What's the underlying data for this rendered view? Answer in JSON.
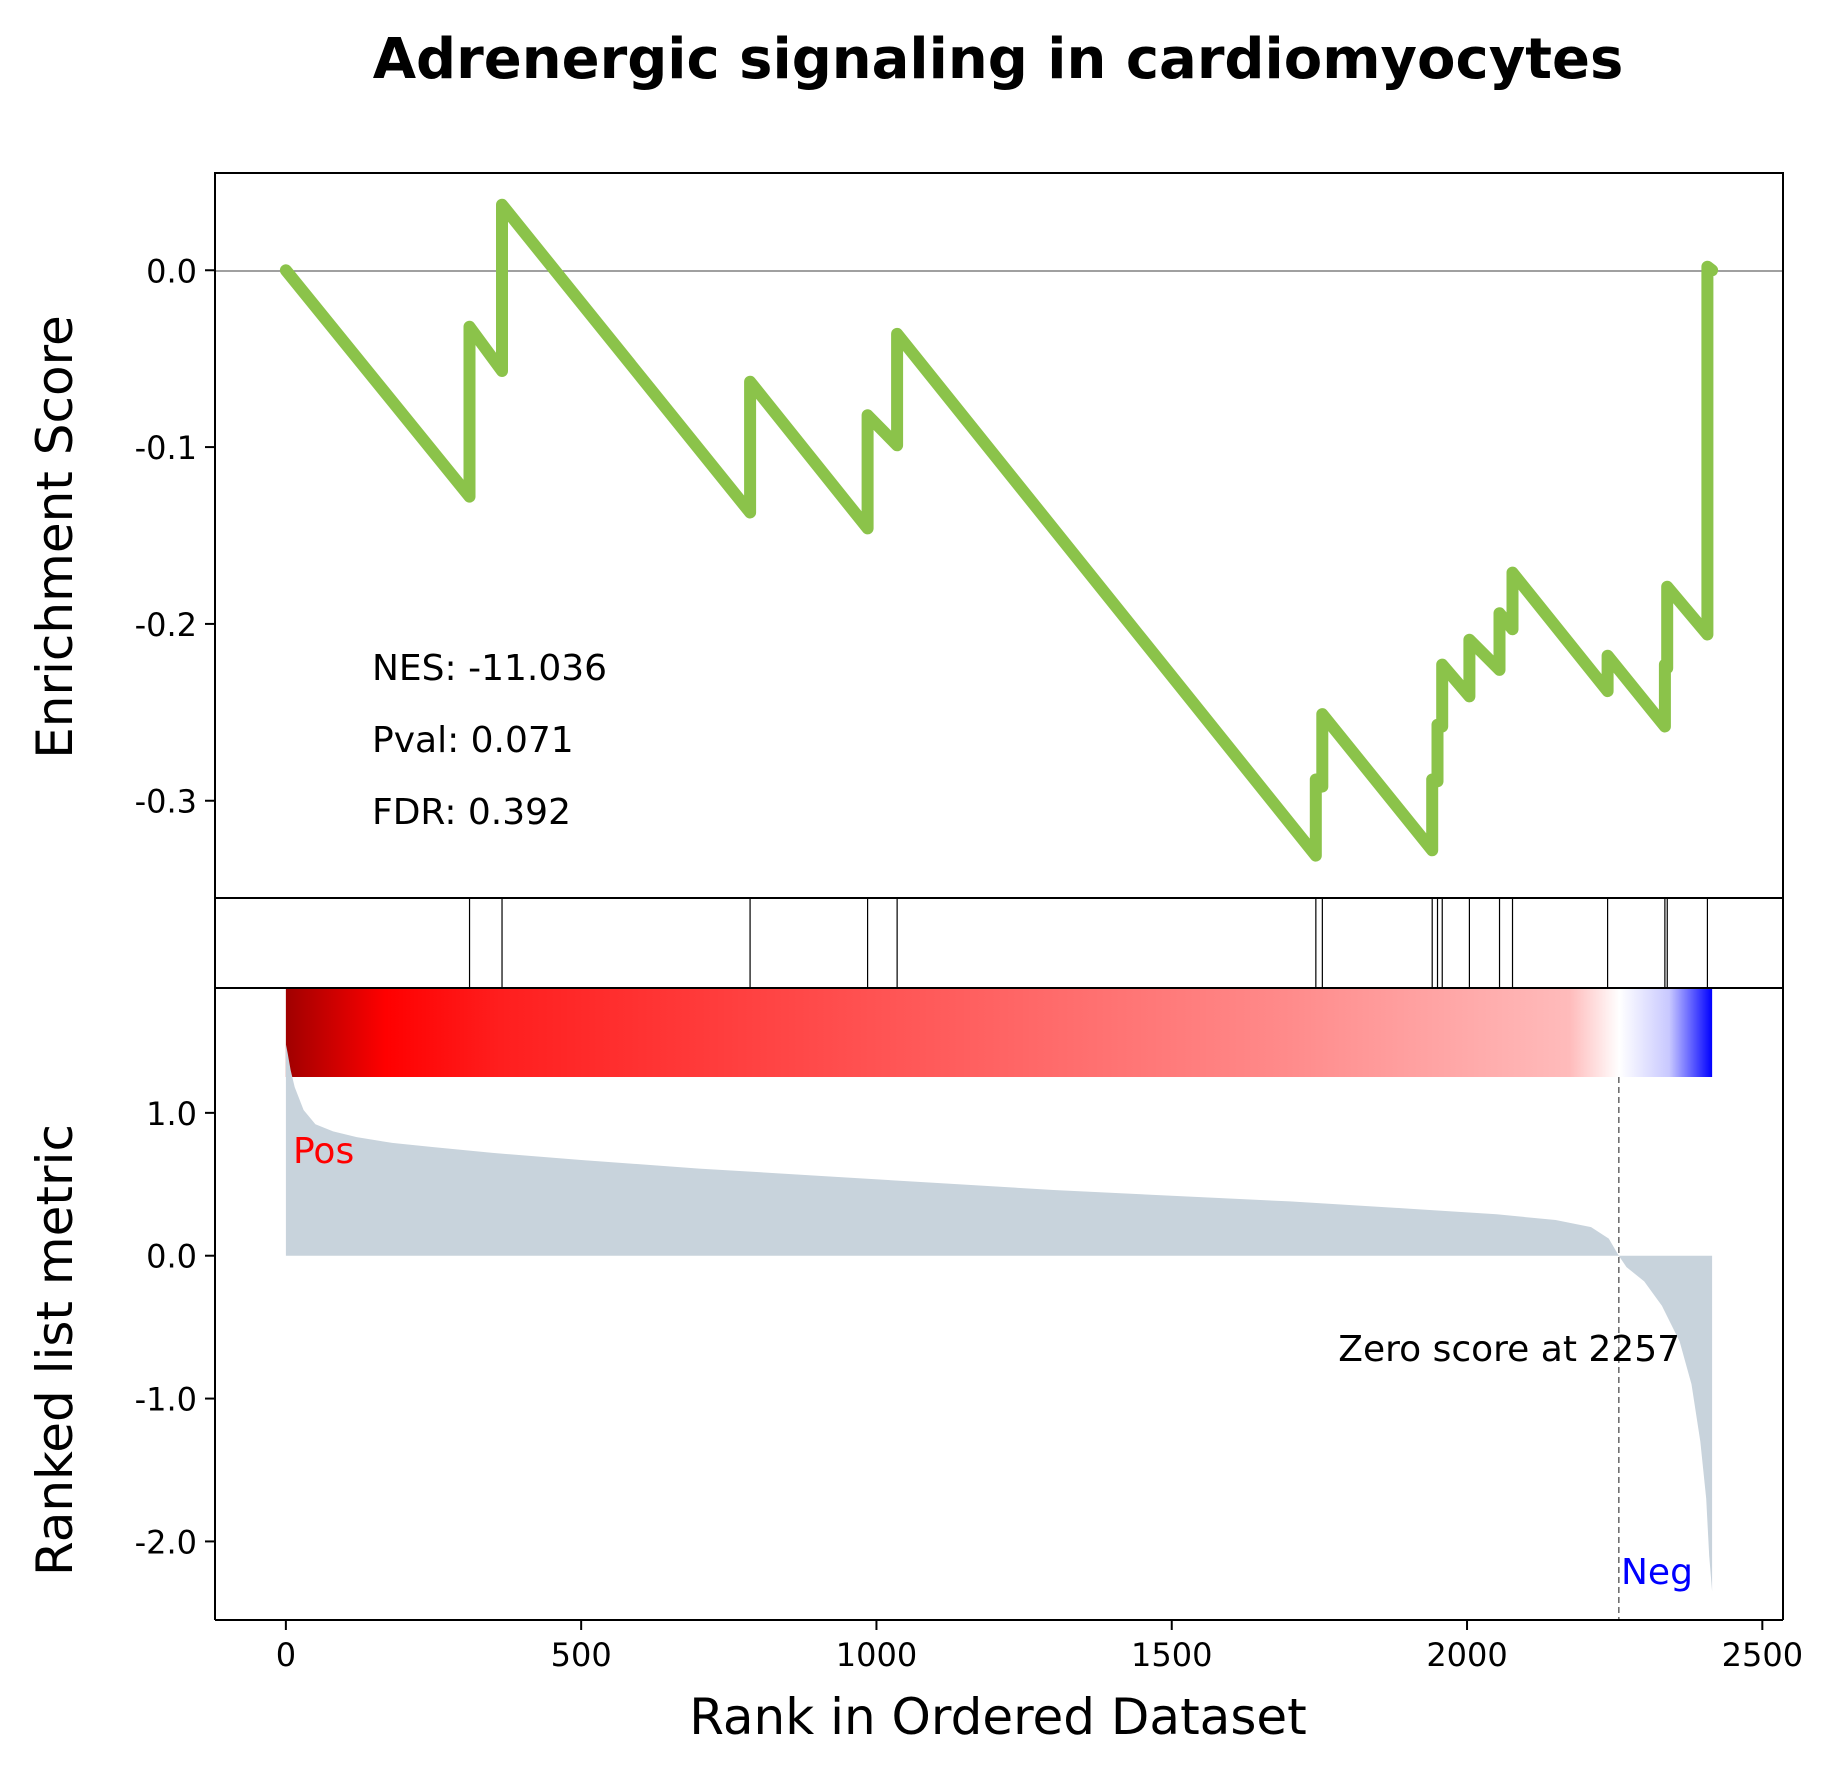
{
  "chart_data": {
    "type": "line",
    "title": "Adrenergic signaling in cardiomyocytes",
    "xlabel": "Rank in Ordered Dataset",
    "xlim": [
      -120,
      2535
    ],
    "x_ticks": [
      0,
      500,
      1000,
      1500,
      2000,
      2500
    ],
    "x_tick_labels": [
      "0",
      "500",
      "1000",
      "1500",
      "2000",
      "2500"
    ],
    "enrichment": {
      "ylabel": "Enrichment Score",
      "ylim": [
        -0.355,
        0.055
      ],
      "y_ticks": [
        0.0,
        -0.1,
        -0.2,
        -0.3
      ],
      "y_tick_labels": [
        "0.0",
        "-0.1",
        "-0.2",
        "-0.3"
      ],
      "color": "#8bc34a",
      "x": [
        0,
        311,
        311,
        366,
        366,
        786,
        786,
        985,
        985,
        1035,
        1035,
        1744,
        1744,
        1755,
        1755,
        1941,
        1941,
        1950,
        1950,
        1958,
        1958,
        2004,
        2004,
        2055,
        2055,
        2077,
        2077,
        2238,
        2238,
        2335,
        2335,
        2339,
        2339,
        2407,
        2407,
        2415
      ],
      "y": [
        0.0,
        -0.128,
        -0.032,
        -0.057,
        0.037,
        -0.137,
        -0.063,
        -0.146,
        -0.082,
        -0.099,
        -0.036,
        -0.331,
        -0.288,
        -0.292,
        -0.251,
        -0.328,
        -0.288,
        -0.289,
        -0.257,
        -0.258,
        -0.223,
        -0.241,
        -0.209,
        -0.226,
        -0.194,
        -0.203,
        -0.171,
        -0.238,
        -0.218,
        -0.258,
        -0.223,
        -0.225,
        -0.179,
        -0.206,
        0.002,
        0.0
      ],
      "hits": [
        311,
        366,
        786,
        985,
        1035,
        1744,
        1755,
        1941,
        1950,
        1958,
        2004,
        2055,
        2077,
        2238,
        2335,
        2339,
        2407
      ],
      "annotations": [
        "NES: -11.036",
        "Pval: 0.071",
        "FDR: 0.392"
      ]
    },
    "ranked": {
      "ylabel": "Ranked list metric",
      "ylim": [
        -2.55,
        1.65
      ],
      "y_ticks": [
        1.0,
        0.0,
        -1.0,
        -2.0
      ],
      "y_tick_labels": [
        "1.0",
        "0.0",
        "-1.0",
        "-2.0"
      ],
      "fill_color": "#c8d3dc",
      "x": [
        0,
        3,
        8,
        15,
        30,
        50,
        80,
        120,
        180,
        250,
        350,
        500,
        700,
        900,
        1100,
        1300,
        1500,
        1700,
        1900,
        2050,
        2150,
        2210,
        2240,
        2257,
        2270,
        2300,
        2330,
        2360,
        2380,
        2395,
        2405,
        2410,
        2415
      ],
      "y": [
        1.48,
        1.42,
        1.3,
        1.18,
        1.02,
        0.92,
        0.87,
        0.83,
        0.79,
        0.76,
        0.72,
        0.67,
        0.61,
        0.56,
        0.51,
        0.46,
        0.42,
        0.38,
        0.33,
        0.29,
        0.25,
        0.2,
        0.12,
        0.0,
        -0.08,
        -0.18,
        -0.35,
        -0.6,
        -0.9,
        -1.3,
        -1.7,
        -2.1,
        -2.35
      ],
      "zero_rank": 2257,
      "zero_label": "Zero score at 2257",
      "pos_label": "Pos",
      "neg_label": "Neg",
      "pos_color": "#ff0000",
      "neg_color": "#0000ff"
    }
  }
}
